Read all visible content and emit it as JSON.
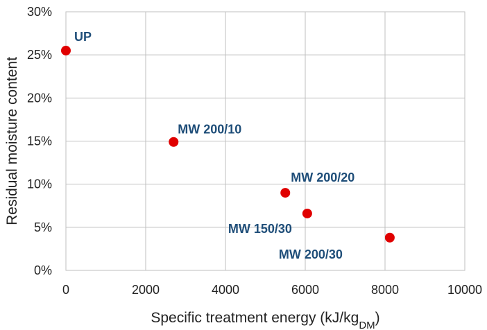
{
  "chart_data": {
    "type": "scatter",
    "xlabel": "Specific treatment energy (kJ/kg",
    "xlabel_subscript": "DM",
    "xlabel_suffix": ")",
    "ylabel": "Residual moisture content",
    "xlim": [
      0,
      10000
    ],
    "ylim": [
      0,
      30
    ],
    "x_ticks": [
      0,
      2000,
      4000,
      6000,
      8000,
      10000
    ],
    "y_ticks": [
      0,
      5,
      10,
      15,
      20,
      25,
      30
    ],
    "y_tick_labels": [
      "0%",
      "5%",
      "10%",
      "15%",
      "20%",
      "25%",
      "30%"
    ],
    "grid": true,
    "legend": "none",
    "marker_color": "#E00000",
    "label_color": "#1F4E79",
    "points": [
      {
        "label": "UP",
        "x": 0,
        "y": 25.5
      },
      {
        "label": "MW 200/10",
        "x": 2700,
        "y": 14.9
      },
      {
        "label": "MW 200/20",
        "x": 5500,
        "y": 9.0
      },
      {
        "label": "MW 150/30",
        "x": 6050,
        "y": 6.6
      },
      {
        "label": "MW 200/30",
        "x": 8120,
        "y": 3.8
      }
    ]
  }
}
